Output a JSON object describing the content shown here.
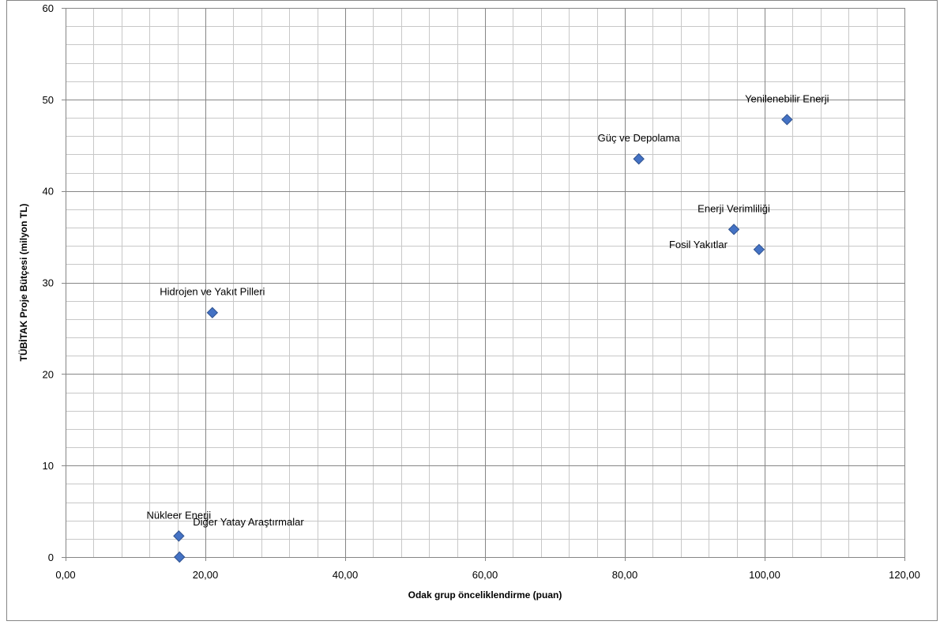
{
  "chart_data": {
    "type": "scatter",
    "xlabel": "Odak grup önceliklendirme (puan)",
    "ylabel": "TÜBİTAK Proje Bütçesi  (milyon TL)",
    "xlim": [
      0,
      120
    ],
    "ylim": [
      0,
      60
    ],
    "x_major_ticks": [
      0,
      20,
      40,
      60,
      80,
      100,
      120
    ],
    "x_tick_labels": [
      "0,00",
      "20,00",
      "40,00",
      "60,00",
      "80,00",
      "100,00",
      "120,00"
    ],
    "y_major_ticks": [
      0,
      10,
      20,
      30,
      40,
      50,
      60
    ],
    "y_tick_labels": [
      "0",
      "10",
      "20",
      "30",
      "40",
      "50",
      "60"
    ],
    "x_minor_step": 4,
    "y_minor_step": 2,
    "grid": true,
    "legend": "none",
    "marker_color": "#4472c4",
    "gridline_major_color": "#868686",
    "gridline_minor_color": "#c8c8c8",
    "points": [
      {
        "label": "Yenilenebilir Enerji",
        "x": 103.2,
        "y": 47.8,
        "label_pos": "above"
      },
      {
        "label": "Güç ve Depolama",
        "x": 82.0,
        "y": 43.5,
        "label_pos": "above"
      },
      {
        "label": "Enerji Verimliliği",
        "x": 95.6,
        "y": 35.8,
        "label_pos": "above"
      },
      {
        "label": "Fosil Yakıtlar",
        "x": 99.2,
        "y": 33.6,
        "label_pos": "left"
      },
      {
        "label": "Hidrojen ve Yakıt Pilleri",
        "x": 21.0,
        "y": 26.7,
        "label_pos": "above"
      },
      {
        "label": "Nükleer Enerji",
        "x": 16.2,
        "y": 2.3,
        "label_pos": "above"
      },
      {
        "label": "Diğer Yatay  Araştırmalar",
        "x": 16.3,
        "y": 0.0,
        "label_pos": "above-right"
      }
    ]
  }
}
